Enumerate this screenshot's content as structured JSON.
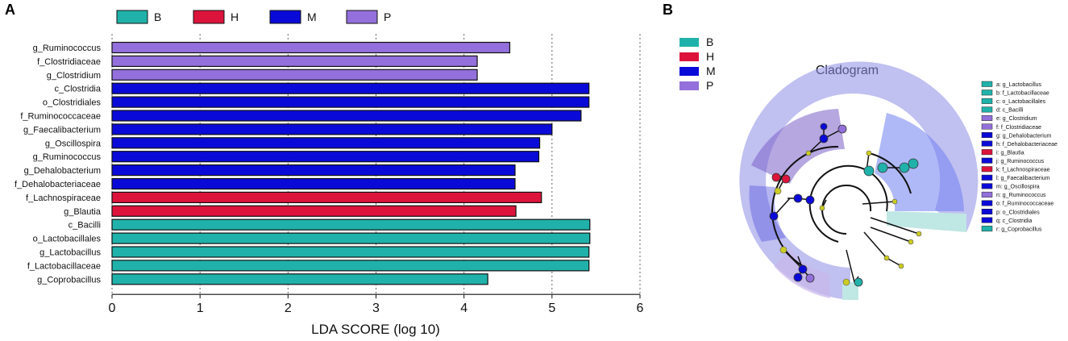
{
  "panels": {
    "a_label": "A",
    "b_label": "B"
  },
  "colors": {
    "B": "#20b2aa",
    "H": "#dc143c",
    "M": "#0a0ad8",
    "P": "#9370db"
  },
  "legend": [
    {
      "key": "B",
      "label": "B"
    },
    {
      "key": "H",
      "label": "H"
    },
    {
      "key": "M",
      "label": "M"
    },
    {
      "key": "P",
      "label": "P"
    }
  ],
  "chart_data": [
    {
      "type": "bar",
      "orientation": "horizontal",
      "title": "",
      "xlabel": "LDA SCORE (log 10)",
      "ylabel": "",
      "xlim": [
        0,
        6
      ],
      "xticks": [
        0,
        1,
        2,
        3,
        4,
        5,
        6
      ],
      "grid": "dotted vertical lines at ticks",
      "legend_position": "top",
      "categories": [
        "g_Ruminococcus",
        "f_Clostridiaceae",
        "g_Clostridium",
        "c_Clostridia",
        "o_Clostridiales",
        "f_Ruminococcaceae",
        "g_Faecalibacterium",
        "g_Oscillospira",
        "g_Ruminococcus",
        "g_Dehalobacterium",
        "f_Dehalobacteriaceae",
        "f_Lachnospiraceae",
        "g_Blautia",
        "c_Bacilli",
        "o_Lactobacillales",
        "g_Lactobacillus",
        "f_Lactobacillaceae",
        "g_Coprobacillus"
      ],
      "values": [
        4.52,
        4.15,
        4.15,
        5.42,
        5.42,
        5.33,
        5.0,
        4.86,
        4.85,
        4.58,
        4.58,
        4.88,
        4.59,
        5.43,
        5.43,
        5.42,
        5.42,
        4.27
      ],
      "groups": [
        "P",
        "P",
        "P",
        "M",
        "M",
        "M",
        "M",
        "M",
        "M",
        "M",
        "M",
        "H",
        "H",
        "B",
        "B",
        "B",
        "B",
        "B"
      ]
    },
    {
      "type": "cladogram",
      "title": "Cladogram",
      "legend_position": "top-left",
      "groups_legend": [
        {
          "key": "B",
          "label": "B"
        },
        {
          "key": "H",
          "label": "H"
        },
        {
          "key": "M",
          "label": "M"
        },
        {
          "key": "P",
          "label": "P"
        }
      ],
      "taxa": [
        {
          "label": "a: g_Lactobacillus",
          "group": "B"
        },
        {
          "label": "b: f_Lactobacillaceae",
          "group": "B"
        },
        {
          "label": "c: o_Lactobacillales",
          "group": "B"
        },
        {
          "label": "d: c_Bacilli",
          "group": "B"
        },
        {
          "label": "e: g_Clostridium",
          "group": "P"
        },
        {
          "label": "f: f_Clostridiaceae",
          "group": "P"
        },
        {
          "label": "g: g_Dehalobacterium",
          "group": "M"
        },
        {
          "label": "h: f_Dehalobacteriaceae",
          "group": "M"
        },
        {
          "label": "i: g_Blautia",
          "group": "H"
        },
        {
          "label": "j: g_Ruminococcus",
          "group": "M"
        },
        {
          "label": "k: f_Lachnospiraceae",
          "group": "H"
        },
        {
          "label": "l: g_Faecalibacterium",
          "group": "M"
        },
        {
          "label": "m: g_Oscillospira",
          "group": "M"
        },
        {
          "label": "n: g_Ruminococcus",
          "group": "P"
        },
        {
          "label": "o: f_Ruminococcaceae",
          "group": "M"
        },
        {
          "label": "p: o_Clostridiales",
          "group": "M"
        },
        {
          "label": "q: c_Clostridia",
          "group": "M"
        },
        {
          "label": "r: g_Coprobacillus",
          "group": "B"
        }
      ]
    }
  ]
}
